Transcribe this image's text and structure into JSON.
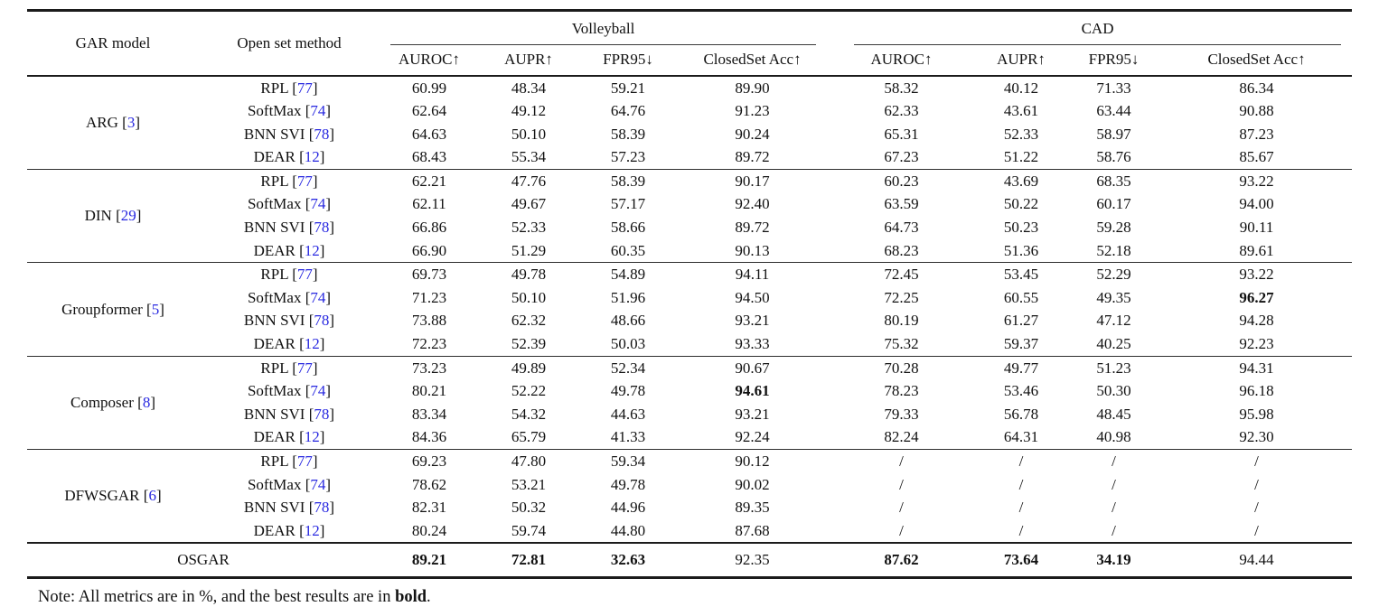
{
  "table": {
    "colors": {
      "citation_blue": "#2828e0",
      "rule_dark": "#1b1b1b"
    },
    "header": {
      "gar_model": "GAR model",
      "open_set_method": "Open set method",
      "dataset_groups": [
        {
          "label": "Volleyball",
          "metrics": [
            "AUROC↑",
            "AUPR↑",
            "FPR95↓",
            "ClosedSet Acc↑"
          ]
        },
        {
          "label": "CAD",
          "metrics": [
            "AUROC↑",
            "AUPR↑",
            "FPR95↓",
            "ClosedSet Acc↑"
          ]
        }
      ]
    },
    "groups": [
      {
        "model": "ARG",
        "cite": "3",
        "rows": [
          {
            "method": "RPL",
            "cite": "77",
            "values": [
              "60.99",
              "48.34",
              "59.21",
              "89.90",
              "58.32",
              "40.12",
              "71.33",
              "86.34"
            ],
            "bold_idx": []
          },
          {
            "method": "SoftMax",
            "cite": "74",
            "values": [
              "62.64",
              "49.12",
              "64.76",
              "91.23",
              "62.33",
              "43.61",
              "63.44",
              "90.88"
            ],
            "bold_idx": []
          },
          {
            "method": "BNN SVI",
            "cite": "78",
            "values": [
              "64.63",
              "50.10",
              "58.39",
              "90.24",
              "65.31",
              "52.33",
              "58.97",
              "87.23"
            ],
            "bold_idx": []
          },
          {
            "method": "DEAR",
            "cite": "12",
            "values": [
              "68.43",
              "55.34",
              "57.23",
              "89.72",
              "67.23",
              "51.22",
              "58.76",
              "85.67"
            ],
            "bold_idx": []
          }
        ]
      },
      {
        "model": "DIN",
        "cite": "29",
        "rows": [
          {
            "method": "RPL",
            "cite": "77",
            "values": [
              "62.21",
              "47.76",
              "58.39",
              "90.17",
              "60.23",
              "43.69",
              "68.35",
              "93.22"
            ],
            "bold_idx": []
          },
          {
            "method": "SoftMax",
            "cite": "74",
            "values": [
              "62.11",
              "49.67",
              "57.17",
              "92.40",
              "63.59",
              "50.22",
              "60.17",
              "94.00"
            ],
            "bold_idx": []
          },
          {
            "method": "BNN SVI",
            "cite": "78",
            "values": [
              "66.86",
              "52.33",
              "58.66",
              "89.72",
              "64.73",
              "50.23",
              "59.28",
              "90.11"
            ],
            "bold_idx": []
          },
          {
            "method": "DEAR",
            "cite": "12",
            "values": [
              "66.90",
              "51.29",
              "60.35",
              "90.13",
              "68.23",
              "51.36",
              "52.18",
              "89.61"
            ],
            "bold_idx": []
          }
        ]
      },
      {
        "model": "Groupformer",
        "cite": "5",
        "rows": [
          {
            "method": "RPL",
            "cite": "77",
            "values": [
              "69.73",
              "49.78",
              "54.89",
              "94.11",
              "72.45",
              "53.45",
              "52.29",
              "93.22"
            ],
            "bold_idx": []
          },
          {
            "method": "SoftMax",
            "cite": "74",
            "values": [
              "71.23",
              "50.10",
              "51.96",
              "94.50",
              "72.25",
              "60.55",
              "49.35",
              "96.27"
            ],
            "bold_idx": [
              7
            ]
          },
          {
            "method": "BNN SVI",
            "cite": "78",
            "values": [
              "73.88",
              "62.32",
              "48.66",
              "93.21",
              "80.19",
              "61.27",
              "47.12",
              "94.28"
            ],
            "bold_idx": []
          },
          {
            "method": "DEAR",
            "cite": "12",
            "values": [
              "72.23",
              "52.39",
              "50.03",
              "93.33",
              "75.32",
              "59.37",
              "40.25",
              "92.23"
            ],
            "bold_idx": []
          }
        ]
      },
      {
        "model": "Composer",
        "cite": "8",
        "rows": [
          {
            "method": "RPL",
            "cite": "77",
            "values": [
              "73.23",
              "49.89",
              "52.34",
              "90.67",
              "70.28",
              "49.77",
              "51.23",
              "94.31"
            ],
            "bold_idx": []
          },
          {
            "method": "SoftMax",
            "cite": "74",
            "values": [
              "80.21",
              "52.22",
              "49.78",
              "94.61",
              "78.23",
              "53.46",
              "50.30",
              "96.18"
            ],
            "bold_idx": [
              3
            ]
          },
          {
            "method": "BNN SVI",
            "cite": "78",
            "values": [
              "83.34",
              "54.32",
              "44.63",
              "93.21",
              "79.33",
              "56.78",
              "48.45",
              "95.98"
            ],
            "bold_idx": []
          },
          {
            "method": "DEAR",
            "cite": "12",
            "values": [
              "84.36",
              "65.79",
              "41.33",
              "92.24",
              "82.24",
              "64.31",
              "40.98",
              "92.30"
            ],
            "bold_idx": []
          }
        ]
      },
      {
        "model": "DFWSGAR",
        "cite": "6",
        "rows": [
          {
            "method": "RPL",
            "cite": "77",
            "values": [
              "69.23",
              "47.80",
              "59.34",
              "90.12",
              "/",
              "/",
              "/",
              "/"
            ],
            "bold_idx": []
          },
          {
            "method": "SoftMax",
            "cite": "74",
            "values": [
              "78.62",
              "53.21",
              "49.78",
              "90.02",
              "/",
              "/",
              "/",
              "/"
            ],
            "bold_idx": []
          },
          {
            "method": "BNN SVI",
            "cite": "78",
            "values": [
              "82.31",
              "50.32",
              "44.96",
              "89.35",
              "/",
              "/",
              "/",
              "/"
            ],
            "bold_idx": []
          },
          {
            "method": "DEAR",
            "cite": "12",
            "values": [
              "80.24",
              "59.74",
              "44.80",
              "87.68",
              "/",
              "/",
              "/",
              "/"
            ],
            "bold_idx": []
          }
        ]
      }
    ],
    "footer_row": {
      "label": "OSGAR",
      "values": [
        "89.21",
        "72.81",
        "32.63",
        "92.35",
        "87.62",
        "73.64",
        "34.19",
        "94.44"
      ],
      "bold_idx": [
        0,
        1,
        2,
        4,
        5,
        6
      ]
    },
    "note": {
      "prefix": "Note: All metrics are in %, and the best results are in ",
      "bold_word": "bold",
      "suffix": "."
    }
  }
}
